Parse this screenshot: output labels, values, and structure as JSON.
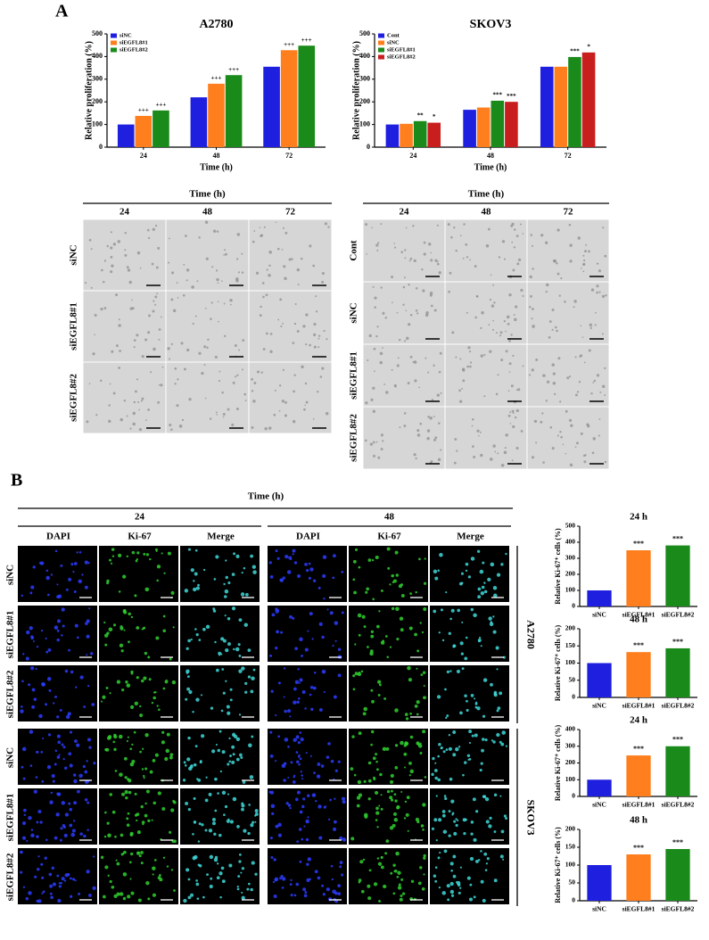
{
  "figure": {
    "panel_a": {
      "label": "A",
      "left_grid": {
        "header": "Time (h)",
        "columns": [
          "24",
          "48",
          "72"
        ],
        "rows": [
          "siNC",
          "siEGFL8#1",
          "siEGFL8#2"
        ]
      },
      "right_grid": {
        "header": "Time (h)",
        "columns": [
          "24",
          "48",
          "72"
        ],
        "rows": [
          "Cont",
          "siNC",
          "siEGFL8#1",
          "siEGFL8#2"
        ]
      }
    },
    "panel_b": {
      "label": "B",
      "header": "Time (h)",
      "times": [
        "24",
        "48"
      ],
      "channels": [
        "DAPI",
        "Ki-67",
        "Merge"
      ],
      "rows": [
        "siNC",
        "siEGFL8#1",
        "siEGFL8#2"
      ],
      "cell_lines": [
        "A2780",
        "SKOV3"
      ]
    }
  },
  "chart_data": [
    {
      "type": "bar",
      "title": "A2780",
      "xlabel": "Time (h)",
      "ylabel": "Relative proliferation (%)",
      "categories": [
        "24",
        "48",
        "72"
      ],
      "legend": "upper left",
      "series": [
        {
          "name": "siNC",
          "color": "#1f1fe0",
          "values": [
            100,
            220,
            355
          ],
          "labels": [
            null,
            null,
            null
          ]
        },
        {
          "name": "siEGFL8#1",
          "color": "#ff7f1e",
          "values": [
            138,
            280,
            428
          ],
          "labels": [
            "+++",
            "+++",
            "+++"
          ]
        },
        {
          "name": "siEGFL8#2",
          "color": "#1a8a1a",
          "values": [
            162,
            318,
            448
          ],
          "labels": [
            "+++",
            "+++",
            "+++"
          ]
        }
      ],
      "ylim": [
        0,
        500
      ],
      "yticks": [
        0,
        100,
        200,
        300,
        400,
        500
      ]
    },
    {
      "type": "bar",
      "title": "SKOV3",
      "xlabel": "Time (h)",
      "ylabel": "Relative proliferation (%)",
      "categories": [
        "24",
        "48",
        "72"
      ],
      "legend": "upper left",
      "series": [
        {
          "name": "Cont",
          "color": "#1f1fe0",
          "values": [
            100,
            165,
            355
          ],
          "labels": [
            null,
            null,
            null
          ]
        },
        {
          "name": "siNC",
          "color": "#ff7f1e",
          "values": [
            103,
            175,
            355
          ],
          "labels": [
            null,
            null,
            null
          ]
        },
        {
          "name": "siEGFL8#1",
          "color": "#1a8a1a",
          "values": [
            115,
            205,
            398
          ],
          "labels": [
            "**",
            "***",
            "***"
          ]
        },
        {
          "name": "siEGFL8#2",
          "color": "#c81e1e",
          "values": [
            108,
            200,
            418
          ],
          "labels": [
            "*",
            "***",
            "*"
          ]
        }
      ],
      "ylim": [
        0,
        500
      ],
      "yticks": [
        0,
        100,
        200,
        300,
        400,
        500
      ]
    },
    {
      "type": "bar",
      "title": "24 h",
      "ylabel": "Relative Ki-67⁺ cells (%)",
      "categories": [
        "siNC",
        "siEGFL8#1",
        "siEGFL8#2"
      ],
      "values": [
        100,
        350,
        380
      ],
      "colors": [
        "#1f1fe0",
        "#ff7f1e",
        "#1a8a1a"
      ],
      "annotations": [
        null,
        "***",
        "***"
      ],
      "ylim": [
        0,
        500
      ],
      "yticks": [
        0,
        100,
        200,
        300,
        400,
        500
      ]
    },
    {
      "type": "bar",
      "title": "48 h",
      "ylabel": "Relative Ki-67⁺ cells (%)",
      "categories": [
        "siNC",
        "siEGFL8#1",
        "siEGFL8#2"
      ],
      "values": [
        100,
        132,
        143
      ],
      "colors": [
        "#1f1fe0",
        "#ff7f1e",
        "#1a8a1a"
      ],
      "annotations": [
        null,
        "***",
        "***"
      ],
      "ylim": [
        0,
        200
      ],
      "yticks": [
        0,
        50,
        100,
        150,
        200
      ]
    },
    {
      "type": "bar",
      "title": "24 h",
      "ylabel": "Relative Ki-67⁺ cells (%)",
      "categories": [
        "siNC",
        "siEGFL8#1",
        "siEGFL8#2"
      ],
      "values": [
        100,
        245,
        300
      ],
      "colors": [
        "#1f1fe0",
        "#ff7f1e",
        "#1a8a1a"
      ],
      "annotations": [
        null,
        "***",
        "***"
      ],
      "ylim": [
        0,
        400
      ],
      "yticks": [
        0,
        100,
        200,
        300,
        400
      ]
    },
    {
      "type": "bar",
      "title": "48 h",
      "ylabel": "Relative Ki-67⁺ cells (%)",
      "categories": [
        "siNC",
        "siEGFL8#1",
        "siEGFL8#2"
      ],
      "values": [
        100,
        130,
        145
      ],
      "colors": [
        "#1f1fe0",
        "#ff7f1e",
        "#1a8a1a"
      ],
      "annotations": [
        null,
        "***",
        "***"
      ],
      "ylim": [
        0,
        200
      ],
      "yticks": [
        0,
        50,
        100,
        150,
        200
      ]
    }
  ]
}
